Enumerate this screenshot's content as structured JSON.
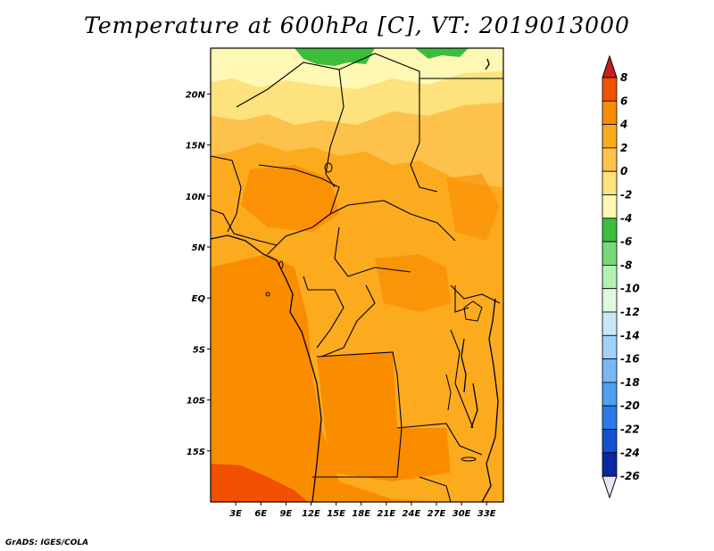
{
  "title": "Temperature at 600hPa [C], VT: 2019013000",
  "credit": "GrADS: IGES/COLA",
  "map": {
    "lon_range": [
      0,
      35
    ],
    "lat_range": [
      -20,
      24.5
    ],
    "lat_ticks": [
      {
        "lat": 20,
        "label": "20N"
      },
      {
        "lat": 15,
        "label": "15N"
      },
      {
        "lat": 10,
        "label": "10N"
      },
      {
        "lat": 5,
        "label": "5N"
      },
      {
        "lat": 0,
        "label": "EQ"
      },
      {
        "lat": -5,
        "label": "5S"
      },
      {
        "lat": -10,
        "label": "10S"
      },
      {
        "lat": -15,
        "label": "15S"
      }
    ],
    "lon_ticks": [
      {
        "lon": 3,
        "label": "3E"
      },
      {
        "lon": 6,
        "label": "6E"
      },
      {
        "lon": 9,
        "label": "9E"
      },
      {
        "lon": 12,
        "label": "12E"
      },
      {
        "lon": 15,
        "label": "15E"
      },
      {
        "lon": 18,
        "label": "18E"
      },
      {
        "lon": 21,
        "label": "21E"
      },
      {
        "lon": 24,
        "label": "24E"
      },
      {
        "lon": 27,
        "label": "27E"
      },
      {
        "lon": 30,
        "label": "30E"
      },
      {
        "lon": 33,
        "label": "33E"
      }
    ]
  },
  "colorbar": {
    "levels": [
      "8",
      "6",
      "4",
      "2",
      "0",
      "-2",
      "-4",
      "-6",
      "-8",
      "-10",
      "-12",
      "-14",
      "-16",
      "-18",
      "-20",
      "-22",
      "-24",
      "-26"
    ],
    "colors_top_to_bottom": [
      "#f02800",
      "#f05000",
      "#fa8c00",
      "#fcab1e",
      "#fcc24b",
      "#fde27d",
      "#fef8b4",
      "#3cbe3c",
      "#78d778",
      "#b4f0b4",
      "#e0fae0",
      "#c8e8fa",
      "#a0d2fa",
      "#78b8f5",
      "#509ff0",
      "#2b7ae8",
      "#1450d0",
      "#0a28a0",
      "#1e1464"
    ],
    "top_arrow_color": "#c81e1e",
    "bottom_arrow_color": "#e6e6fa"
  }
}
